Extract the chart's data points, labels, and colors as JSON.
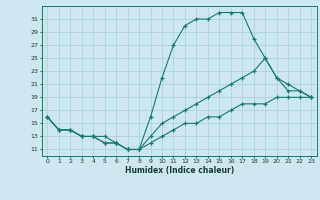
{
  "xlabel": "Humidex (Indice chaleur)",
  "bg_color": "#cce8ee",
  "grid_color": "#aacdd5",
  "line_color": "#1a7a6e",
  "spine_color": "#1a7a6e",
  "xlim": [
    -0.5,
    23.5
  ],
  "ylim": [
    10.0,
    33.0
  ],
  "xticks": [
    0,
    1,
    2,
    3,
    4,
    5,
    6,
    7,
    8,
    9,
    10,
    11,
    12,
    13,
    14,
    15,
    16,
    17,
    18,
    19,
    20,
    21,
    22,
    23
  ],
  "yticks": [
    11,
    13,
    15,
    17,
    19,
    21,
    23,
    25,
    27,
    29,
    31
  ],
  "line1_x": [
    0,
    1,
    2,
    3,
    4,
    5,
    6,
    7,
    8,
    9,
    10,
    11,
    12,
    13,
    14,
    15,
    16,
    17,
    18,
    19,
    20,
    21,
    22,
    23
  ],
  "line1_y": [
    16,
    14,
    14,
    13,
    13,
    12,
    12,
    11,
    11,
    16,
    22,
    27,
    30,
    31,
    31,
    32,
    32,
    32,
    28,
    25,
    22,
    20,
    20,
    19
  ],
  "line2_x": [
    0,
    1,
    2,
    3,
    4,
    5,
    6,
    7,
    8,
    9,
    10,
    11,
    12,
    13,
    14,
    15,
    16,
    17,
    18,
    19,
    20,
    21,
    22,
    23
  ],
  "line2_y": [
    16,
    14,
    14,
    13,
    13,
    13,
    12,
    11,
    11,
    13,
    15,
    16,
    17,
    18,
    19,
    20,
    21,
    22,
    23,
    25,
    22,
    21,
    20,
    19
  ],
  "line3_x": [
    0,
    1,
    2,
    3,
    4,
    5,
    6,
    7,
    8,
    9,
    10,
    11,
    12,
    13,
    14,
    15,
    16,
    17,
    18,
    19,
    20,
    21,
    22,
    23
  ],
  "line3_y": [
    16,
    14,
    14,
    13,
    13,
    12,
    12,
    11,
    11,
    12,
    13,
    14,
    15,
    15,
    16,
    16,
    17,
    18,
    18,
    18,
    19,
    19,
    19,
    19
  ]
}
